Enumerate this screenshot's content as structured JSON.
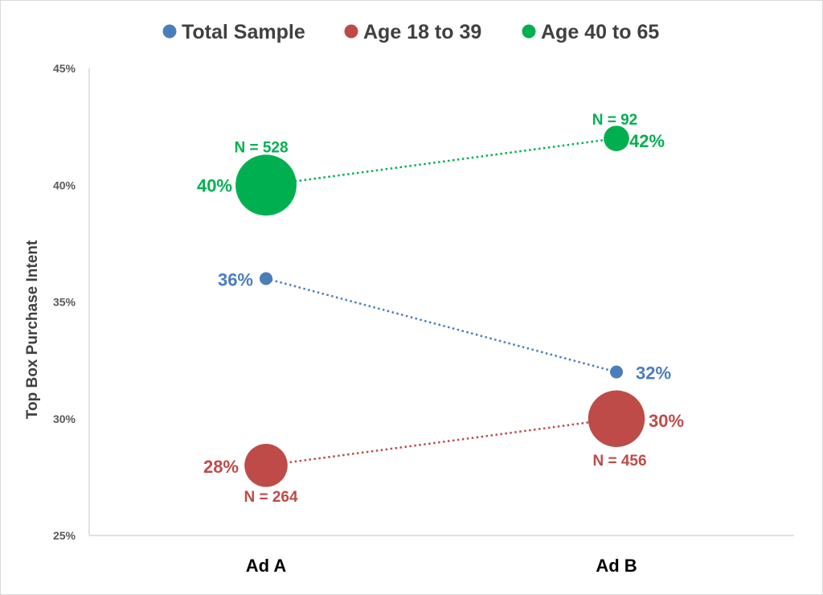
{
  "chart_data": {
    "type": "scatter",
    "categories": [
      "Ad A",
      "Ad B"
    ],
    "ylabel": "Top Box Purchase Intent",
    "xlabel": "",
    "ylim": [
      25,
      45
    ],
    "y_ticks": [
      25,
      30,
      35,
      40,
      45
    ],
    "y_tick_labels": [
      "25%",
      "30%",
      "35%",
      "40%",
      "45%"
    ],
    "grid": false,
    "legend_position": "top",
    "series": [
      {
        "name": "Total Sample",
        "color": "#4A7EBB",
        "values": [
          36,
          32
        ],
        "value_labels": [
          "36%",
          "32%"
        ],
        "sample_sizes": [
          null,
          null
        ],
        "n_labels": [
          "",
          ""
        ]
      },
      {
        "name": "Age 18 to 39",
        "color": "#BE4B48",
        "values": [
          28,
          30
        ],
        "value_labels": [
          "28%",
          "30%"
        ],
        "sample_sizes": [
          264,
          456
        ],
        "n_labels": [
          "N = 264",
          "N = 456"
        ]
      },
      {
        "name": "Age 40 to 65",
        "color": "#00B050",
        "values": [
          40,
          42
        ],
        "value_labels": [
          "40%",
          "42%"
        ],
        "sample_sizes": [
          528,
          92
        ],
        "n_labels": [
          "N = 528",
          "N = 92"
        ]
      }
    ]
  }
}
